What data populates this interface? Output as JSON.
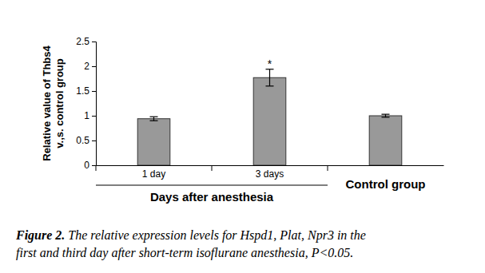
{
  "chart_data": {
    "type": "bar",
    "categories": [
      "1 day",
      "3 days",
      "Control group"
    ],
    "values": [
      0.94,
      1.77,
      1.0
    ],
    "errors": [
      0.04,
      0.17,
      0.03
    ],
    "color": "#999999",
    "ylim": [
      0,
      2.5
    ],
    "yticks": [
      0,
      0.5,
      1,
      1.5,
      2,
      2.5
    ],
    "ylabel": [
      "Relative value of Thbs4",
      "v.,s. control group"
    ],
    "annotations": [
      {
        "text": "*",
        "category": "3 days"
      }
    ],
    "group_label": {
      "text": "Days after anesthesia",
      "categories": [
        "1 day",
        "3 days"
      ]
    },
    "caption_label": "Figure 2.",
    "caption": [
      "The relative expression levels for Hspd1, Plat, Npr3 in the",
      "first and third day after short-term isoflurane anesthesia, P<0.05."
    ],
    "grid": false
  }
}
